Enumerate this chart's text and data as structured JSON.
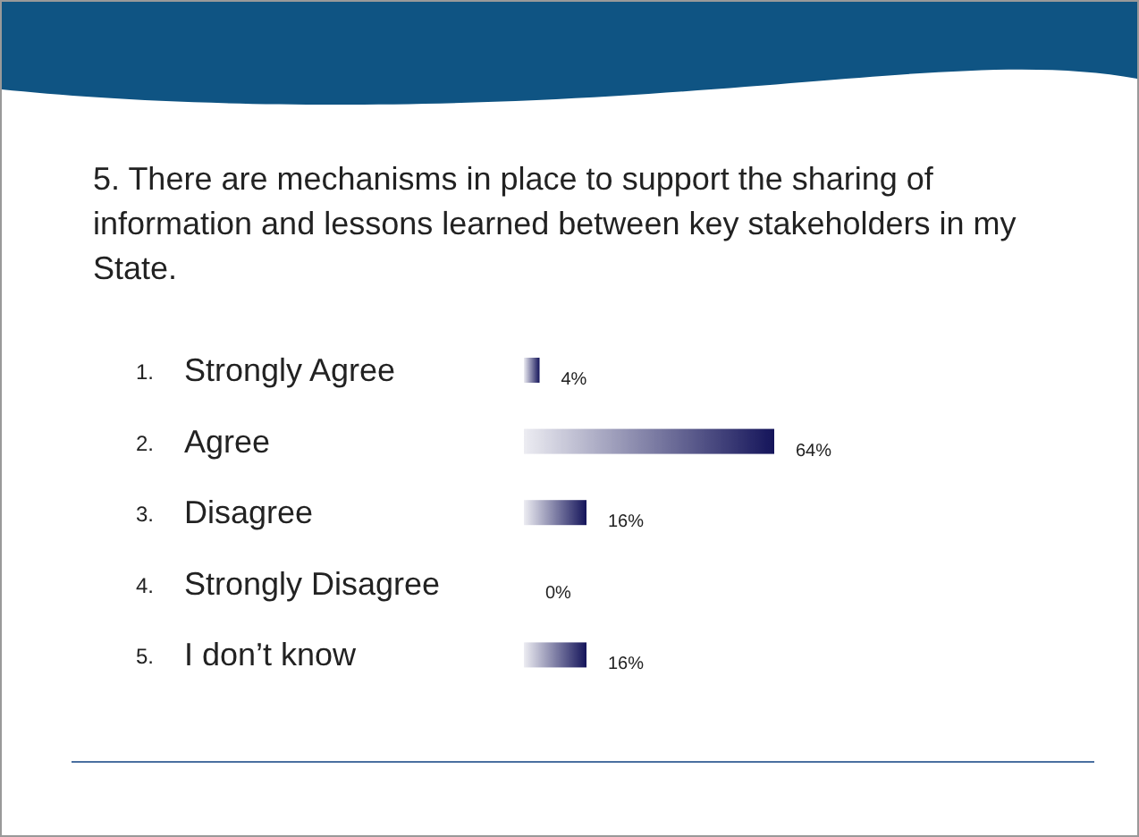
{
  "chart_data": {
    "type": "bar",
    "orientation": "horizontal",
    "title": "5. There are mechanisms in place to support the sharing of information and lessons learned between key stakeholders in my State.",
    "categories": [
      "Strongly Agree",
      "Agree",
      "Disagree",
      "Strongly Disagree",
      "I don’t know"
    ],
    "annotations": [
      "1.",
      "2.",
      "3.",
      "4.",
      "5."
    ],
    "values": [
      4,
      64,
      16,
      0,
      16
    ],
    "value_labels": [
      "4%",
      "64%",
      "16%",
      "0%",
      "16%"
    ],
    "color": "#14145a"
  }
}
